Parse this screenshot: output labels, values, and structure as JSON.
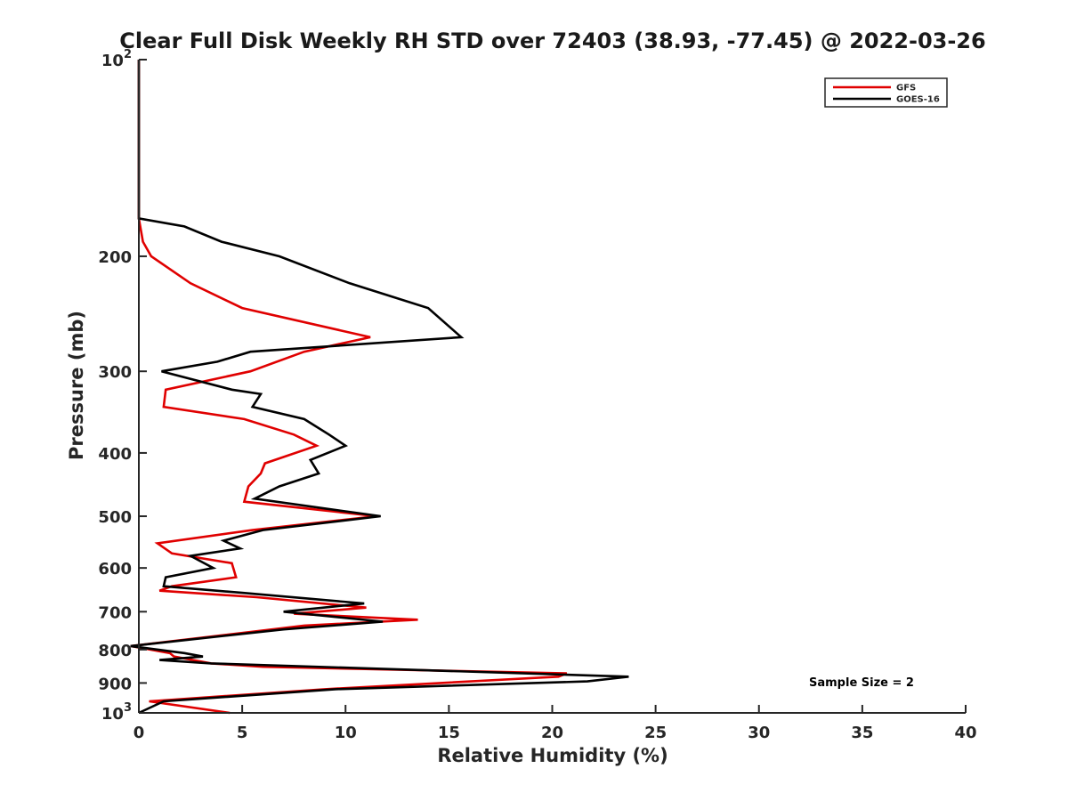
{
  "chart_data": {
    "type": "line",
    "title": "Clear Full Disk Weekly RH STD over 72403 (38.93, -77.45) @ 2022-03-26",
    "xlabel": "Relative Humidity (%)",
    "ylabel": "Pressure (mb)",
    "xlim": [
      0,
      40
    ],
    "ylim": [
      100,
      1000
    ],
    "y_scale": "log",
    "y_direction": "reversed",
    "x_ticks": [
      "0",
      "5",
      "10",
      "15",
      "20",
      "25",
      "30",
      "35",
      "40"
    ],
    "y_ticks": [
      {
        "value": 100,
        "base": "10",
        "exp": "2"
      },
      {
        "value": 200,
        "label": "200"
      },
      {
        "value": 300,
        "label": "300"
      },
      {
        "value": 400,
        "label": "400"
      },
      {
        "value": 500,
        "label": "500"
      },
      {
        "value": 600,
        "label": "600"
      },
      {
        "value": 700,
        "label": "700"
      },
      {
        "value": 800,
        "label": "800"
      },
      {
        "value": 900,
        "label": "900"
      },
      {
        "value": 1000,
        "base": "10",
        "exp": "3"
      }
    ],
    "legend_position": "top-right",
    "grid": false,
    "annotation": "Sample Size = 2",
    "series": [
      {
        "name": "GFS",
        "color": "#e00000",
        "points": [
          [
            0.0,
            100
          ],
          [
            0.0,
            150
          ],
          [
            0.0,
            175
          ],
          [
            0.2,
            190
          ],
          [
            0.6,
            200
          ],
          [
            2.5,
            220
          ],
          [
            5.0,
            240
          ],
          [
            11.2,
            266
          ],
          [
            8.0,
            280
          ],
          [
            5.4,
            300
          ],
          [
            1.3,
            320
          ],
          [
            1.2,
            340
          ],
          [
            5.1,
            355
          ],
          [
            7.5,
            375
          ],
          [
            8.6,
            390
          ],
          [
            6.1,
            415
          ],
          [
            5.9,
            430
          ],
          [
            5.3,
            450
          ],
          [
            5.1,
            475
          ],
          [
            11.5,
            500
          ],
          [
            5.5,
            525
          ],
          [
            0.9,
            550
          ],
          [
            1.6,
            570
          ],
          [
            4.5,
            590
          ],
          [
            4.7,
            620
          ],
          [
            1.6,
            640
          ],
          [
            1.0,
            650
          ],
          [
            5.7,
            665
          ],
          [
            11.0,
            690
          ],
          [
            7.5,
            705
          ],
          [
            13.5,
            720
          ],
          [
            8.0,
            735
          ],
          [
            -0.4,
            790
          ],
          [
            1.5,
            810
          ],
          [
            1.7,
            820
          ],
          [
            3.5,
            840
          ],
          [
            6.0,
            850
          ],
          [
            20.7,
            870
          ],
          [
            20.3,
            880
          ],
          [
            9.0,
            920
          ],
          [
            0.5,
            960
          ],
          [
            4.4,
            1000
          ]
        ]
      },
      {
        "name": "GOES-16",
        "color": "#000000",
        "points": [
          [
            0.0,
            100
          ],
          [
            0.0,
            150
          ],
          [
            0.0,
            175
          ],
          [
            2.2,
            180
          ],
          [
            4.0,
            190
          ],
          [
            6.8,
            200
          ],
          [
            10.2,
            220
          ],
          [
            14.0,
            240
          ],
          [
            15.6,
            266
          ],
          [
            5.4,
            280
          ],
          [
            3.8,
            290
          ],
          [
            1.1,
            300
          ],
          [
            4.5,
            320
          ],
          [
            5.9,
            325
          ],
          [
            5.5,
            340
          ],
          [
            8.0,
            355
          ],
          [
            9.2,
            375
          ],
          [
            10.0,
            390
          ],
          [
            8.3,
            410
          ],
          [
            8.7,
            430
          ],
          [
            6.8,
            450
          ],
          [
            5.6,
            470
          ],
          [
            11.7,
            500
          ],
          [
            6.0,
            525
          ],
          [
            4.1,
            545
          ],
          [
            4.9,
            560
          ],
          [
            2.5,
            575
          ],
          [
            3.6,
            600
          ],
          [
            1.3,
            620
          ],
          [
            1.2,
            640
          ],
          [
            5.0,
            655
          ],
          [
            10.9,
            680
          ],
          [
            7.0,
            700
          ],
          [
            11.8,
            725
          ],
          [
            7.0,
            745
          ],
          [
            -0.4,
            790
          ],
          [
            2.2,
            810
          ],
          [
            3.1,
            820
          ],
          [
            1.0,
            830
          ],
          [
            3.5,
            840
          ],
          [
            23.7,
            880
          ],
          [
            21.7,
            895
          ],
          [
            9.5,
            920
          ],
          [
            1.2,
            960
          ],
          [
            0.0,
            1000
          ]
        ]
      }
    ]
  }
}
